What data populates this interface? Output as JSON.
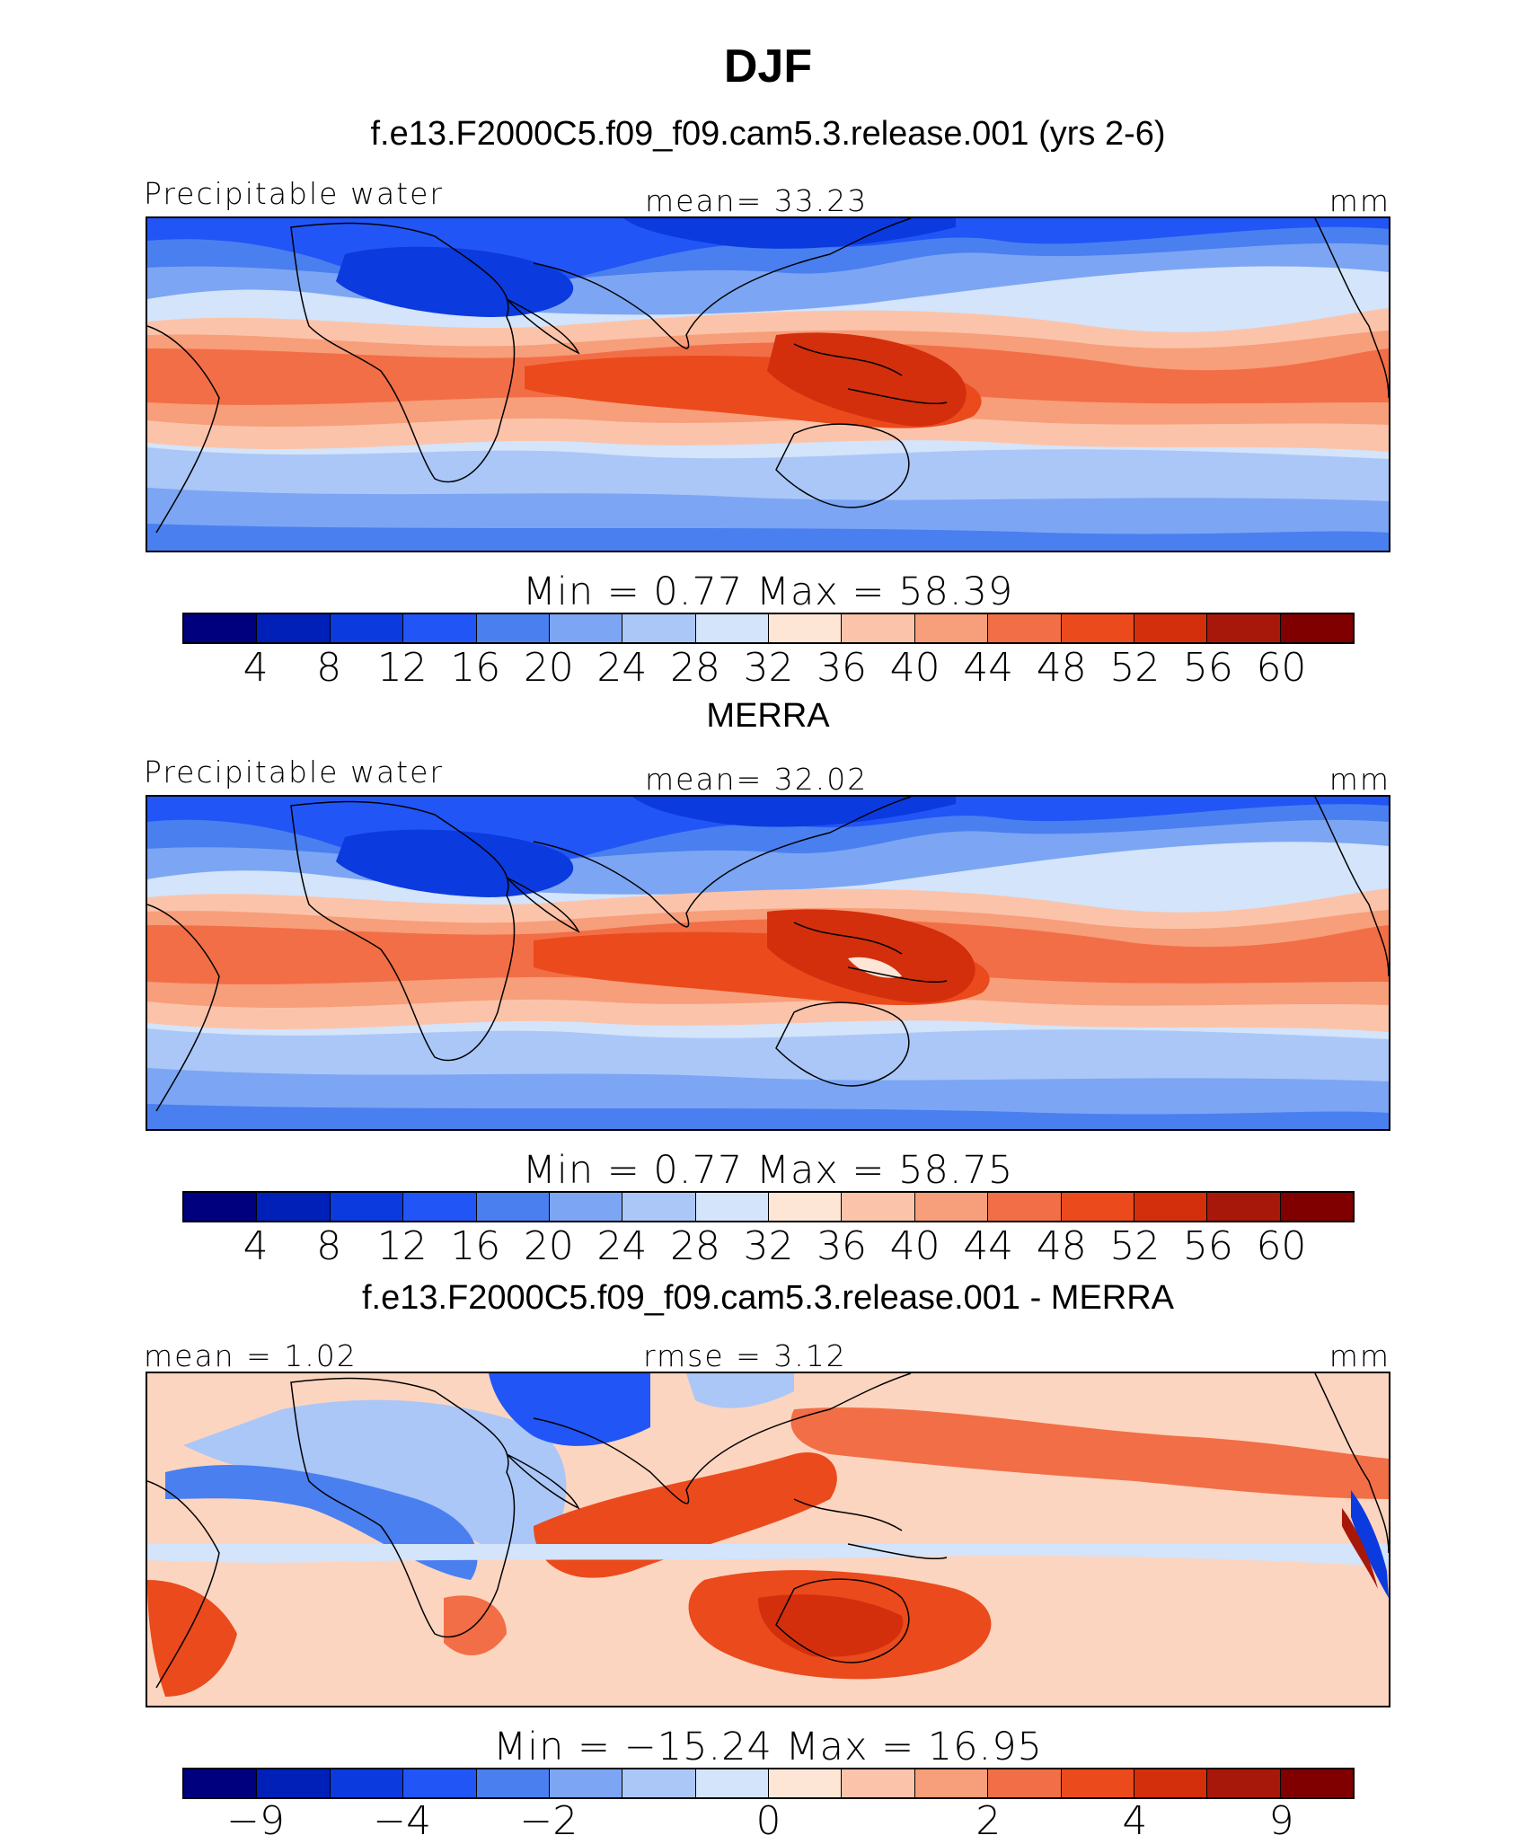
{
  "figure": {
    "season": "DJF",
    "units": "mm"
  },
  "palette": [
    "#00007f",
    "#0020b8",
    "#0b3ade",
    "#2255f6",
    "#4a7ff0",
    "#7ca6f3",
    "#aac7f7",
    "#d3e4fb",
    "#fee6d6",
    "#fbc4aa",
    "#f79e7a",
    "#f26e46",
    "#eb4a1c",
    "#d32f0c",
    "#a8180a",
    "#800000"
  ],
  "panels": [
    {
      "title": "f.e13.F2000C5.f09_f09.cam5.3.release.001 (yrs 2-6)",
      "left_label": "Precipitable water",
      "center_label": "mean=   33.23",
      "right_label": "mm",
      "minmax": "Min  =     0.77  Max  =    58.39",
      "ticks": [
        "4",
        "8",
        "12",
        "16",
        "20",
        "24",
        "28",
        "32",
        "36",
        "40",
        "44",
        "48",
        "52",
        "56",
        "60"
      ]
    },
    {
      "title": "MERRA",
      "left_label": "Precipitable water",
      "center_label": "mean=   32.02",
      "right_label": "mm",
      "minmax": "Min  =     0.77  Max  =    58.75",
      "ticks": [
        "4",
        "8",
        "12",
        "16",
        "20",
        "24",
        "28",
        "32",
        "36",
        "40",
        "44",
        "48",
        "52",
        "56",
        "60"
      ]
    },
    {
      "title": "f.e13.F2000C5.f09_f09.cam5.3.release.001 - MERRA",
      "left_label": "mean  =    1.02",
      "center_label": "rmse  =    3.12",
      "right_label": "mm",
      "minmax": "Min  =  −15.24  Max  =    16.95",
      "ticks": [
        "−9",
        "−4",
        "−2",
        "0",
        "2",
        "4",
        "9"
      ]
    }
  ]
}
